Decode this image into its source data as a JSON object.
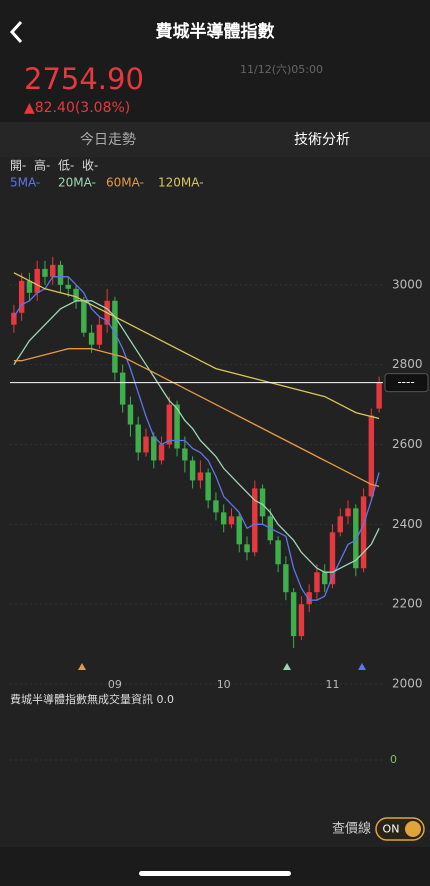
{
  "header": {
    "title": "費城半導體指數"
  },
  "quote": {
    "price": "2754.90",
    "change": "▲82.40(3.08%)",
    "time": "11/12(六)05:00"
  },
  "tabs": [
    "今日走勢",
    "技術分析"
  ],
  "ohlc_legend": [
    "開-",
    "高-",
    "低-",
    "收-"
  ],
  "chart_data": {
    "type": "candlestick",
    "categories": [
      null,
      null,
      null,
      null,
      null,
      null,
      null,
      null,
      null,
      null,
      null,
      null,
      null,
      "09",
      null,
      null,
      null,
      null,
      null,
      null,
      null,
      null,
      null,
      null,
      null,
      null,
      null,
      "10",
      null,
      null,
      null,
      null,
      null,
      null,
      null,
      null,
      null,
      null,
      null,
      null,
      null,
      "11",
      null,
      null,
      null,
      null,
      null,
      null
    ],
    "open": [
      2900,
      2930,
      3010,
      2980,
      3040,
      3020,
      3050,
      3000,
      2990,
      2960,
      2880,
      2850,
      2900,
      2960,
      2780,
      2700,
      2650,
      2580,
      2620,
      2560,
      2600,
      2700,
      2590,
      2560,
      2510,
      2530,
      2460,
      2430,
      2400,
      2420,
      2350,
      2330,
      2490,
      2420,
      2360,
      2300,
      2230,
      2120,
      2200,
      2230,
      2280,
      2250,
      2380,
      2420,
      2440,
      2290,
      2470,
      2690
    ],
    "high": [
      2950,
      3030,
      3030,
      3060,
      3060,
      3070,
      3060,
      3020,
      3000,
      2970,
      2900,
      2920,
      2990,
      2970,
      2800,
      2720,
      2670,
      2640,
      2630,
      2620,
      2720,
      2710,
      2620,
      2570,
      2560,
      2540,
      2480,
      2450,
      2440,
      2430,
      2370,
      2510,
      2500,
      2440,
      2370,
      2320,
      2240,
      2220,
      2250,
      2300,
      2300,
      2400,
      2440,
      2460,
      2450,
      2490,
      2690,
      2770
    ],
    "low": [
      2880,
      2910,
      2960,
      2960,
      3000,
      3000,
      2980,
      2970,
      2940,
      2870,
      2830,
      2840,
      2880,
      2760,
      2680,
      2620,
      2560,
      2570,
      2540,
      2550,
      2590,
      2570,
      2530,
      2490,
      2490,
      2440,
      2410,
      2380,
      2390,
      2330,
      2310,
      2320,
      2400,
      2350,
      2280,
      2210,
      2090,
      2110,
      2180,
      2210,
      2230,
      2240,
      2370,
      2400,
      2270,
      2280,
      2460,
      2680
    ],
    "close": [
      2930,
      3010,
      2980,
      3040,
      3020,
      3050,
      3000,
      2990,
      2960,
      2880,
      2850,
      2900,
      2960,
      2780,
      2700,
      2650,
      2580,
      2620,
      2560,
      2600,
      2700,
      2590,
      2560,
      2510,
      2530,
      2460,
      2430,
      2400,
      2420,
      2350,
      2330,
      2490,
      2420,
      2360,
      2300,
      2230,
      2120,
      2200,
      2230,
      2280,
      2250,
      2380,
      2420,
      2440,
      2290,
      2470,
      2672.5,
      2754.9
    ],
    "up_color": "#e5393f",
    "down_color": "#3fae4d",
    "series": [
      {
        "name": "5MA-",
        "color": "#5a78e6",
        "values": [
          2920,
          2950,
          2960,
          2980,
          2990,
          3020,
          3020,
          3020,
          3000,
          2980,
          2940,
          2920,
          2910,
          2880,
          2840,
          2790,
          2730,
          2670,
          2620,
          2600,
          2610,
          2610,
          2610,
          2590,
          2580,
          2560,
          2520,
          2470,
          2450,
          2430,
          2390,
          2400,
          2400,
          2390,
          2380,
          2370,
          2290,
          2240,
          2210,
          2210,
          2220,
          2270,
          2310,
          2350,
          2360,
          2400,
          2460,
          2530
        ]
      },
      {
        "name": "20MA-",
        "color": "#9ad8b4",
        "values": [
          2800,
          2830,
          2860,
          2880,
          2900,
          2920,
          2940,
          2950,
          2960,
          2960,
          2960,
          2950,
          2940,
          2920,
          2890,
          2860,
          2830,
          2800,
          2770,
          2740,
          2710,
          2690,
          2660,
          2640,
          2610,
          2590,
          2570,
          2540,
          2520,
          2500,
          2480,
          2460,
          2450,
          2430,
          2400,
          2380,
          2360,
          2330,
          2310,
          2290,
          2280,
          2280,
          2290,
          2300,
          2310,
          2330,
          2350,
          2390
        ]
      },
      {
        "name": "60MA-",
        "color": "#e39a45",
        "values": [
          2810,
          2810,
          2815,
          2820,
          2825,
          2830,
          2835,
          2840,
          2840,
          2840,
          2840,
          2835,
          2830,
          2825,
          2820,
          2810,
          2800,
          2790,
          2780,
          2770,
          2760,
          2750,
          2740,
          2730,
          2720,
          2710,
          2700,
          2690,
          2680,
          2670,
          2660,
          2650,
          2640,
          2630,
          2620,
          2610,
          2600,
          2590,
          2580,
          2570,
          2560,
          2550,
          2540,
          2530,
          2520,
          2510,
          2500,
          2495
        ]
      },
      {
        "name": "120MA-",
        "color": "#d9c75b",
        "values": [
          3030,
          3020,
          3010,
          3000,
          2990,
          2985,
          2980,
          2975,
          2970,
          2960,
          2950,
          2940,
          2930,
          2920,
          2910,
          2900,
          2890,
          2880,
          2870,
          2860,
          2850,
          2840,
          2830,
          2820,
          2810,
          2800,
          2790,
          2785,
          2780,
          2775,
          2770,
          2765,
          2760,
          2755,
          2750,
          2745,
          2740,
          2735,
          2730,
          2725,
          2720,
          2710,
          2700,
          2690,
          2680,
          2675,
          2670,
          2665
        ]
      }
    ],
    "ylim": [
      2000,
      3225
    ],
    "yticks": [
      2000,
      2200,
      2400,
      2600,
      2800,
      3000
    ],
    "grid": true,
    "price_line_label": "----"
  },
  "volume": {
    "label": "費城半導體指數無成交量資訊 0.0",
    "axis_label": "0"
  },
  "toggle": {
    "label": "查價線",
    "state": "ON"
  }
}
